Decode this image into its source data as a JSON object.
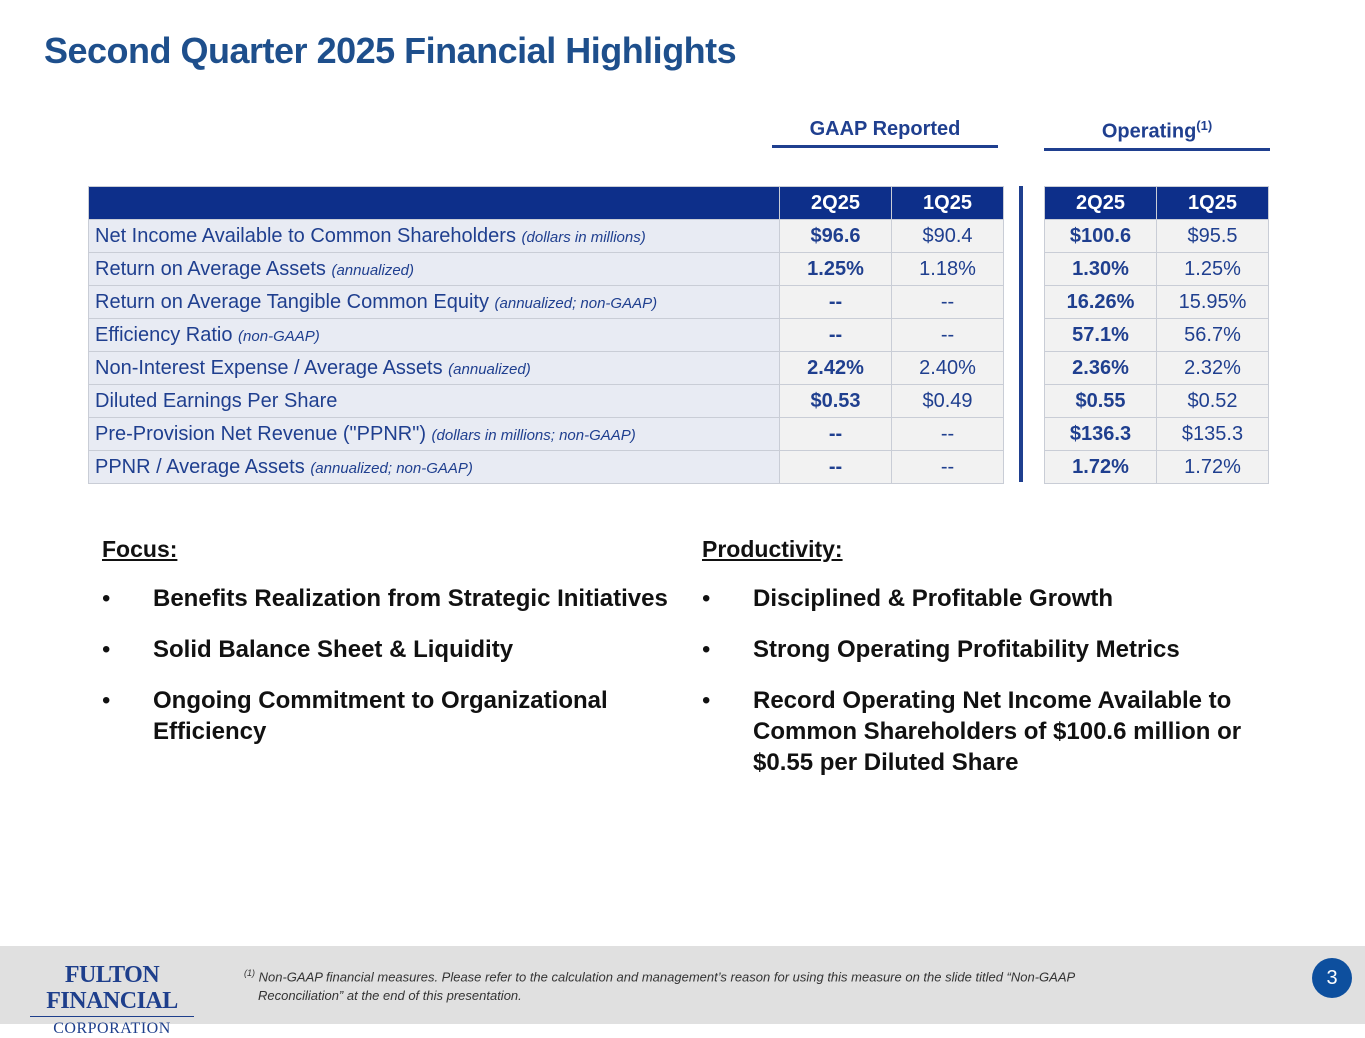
{
  "title": "Second Quarter 2025 Financial Highlights",
  "gaap_header": "GAAP Reported",
  "operating_header": "Operating",
  "operating_sup": "(1)",
  "columns": [
    "2Q25",
    "1Q25"
  ],
  "rows": [
    {
      "label": "Net Income Available to Common Shareholders",
      "note": "(dollars in millions)",
      "gaap_2q25": "$96.6",
      "gaap_1q25": "$90.4",
      "op_2q25": "$100.6",
      "op_1q25": "$95.5"
    },
    {
      "label": "Return on Average Assets",
      "note": "(annualized)",
      "gaap_2q25": "1.25%",
      "gaap_1q25": "1.18%",
      "op_2q25": "1.30%",
      "op_1q25": "1.25%"
    },
    {
      "label": "Return on Average Tangible Common Equity",
      "note": "(annualized; non-GAAP)",
      "gaap_2q25": "--",
      "gaap_1q25": "--",
      "op_2q25": "16.26%",
      "op_1q25": "15.95%"
    },
    {
      "label": "Efficiency Ratio",
      "note": "(non-GAAP)",
      "gaap_2q25": "--",
      "gaap_1q25": "--",
      "op_2q25": "57.1%",
      "op_1q25": "56.7%"
    },
    {
      "label": "Non-Interest Expense / Average Assets",
      "note": "(annualized)",
      "gaap_2q25": "2.42%",
      "gaap_1q25": "2.40%",
      "op_2q25": "2.36%",
      "op_1q25": "2.32%"
    },
    {
      "label": "Diluted Earnings Per Share",
      "note": "",
      "gaap_2q25": "$0.53",
      "gaap_1q25": "$0.49",
      "op_2q25": "$0.55",
      "op_1q25": "$0.52"
    },
    {
      "label": "Pre-Provision Net Revenue (\"PPNR\")",
      "note": "(dollars in millions; non-GAAP)",
      "gaap_2q25": "--",
      "gaap_1q25": "--",
      "op_2q25": "$136.3",
      "op_1q25": "$135.3"
    },
    {
      "label": "PPNR / Average Assets",
      "note": "(annualized; non-GAAP)",
      "gaap_2q25": "--",
      "gaap_1q25": "--",
      "op_2q25": "1.72%",
      "op_1q25": "1.72%"
    }
  ],
  "focus": {
    "heading": "Focus:",
    "items": [
      "Benefits Realization from Strategic Initiatives",
      "Solid Balance Sheet & Liquidity",
      "Ongoing Commitment to Organizational Efficiency"
    ]
  },
  "productivity": {
    "heading": "Productivity:",
    "items": [
      "Disciplined & Profitable Growth",
      "Strong Operating Profitability Metrics",
      "Record Operating Net Income Available to Common Shareholders of $100.6 million or $0.55 per Diluted Share"
    ]
  },
  "bullet": "•",
  "footer": {
    "logo_top": "FULTON FINANCIAL",
    "logo_bottom": "CORPORATION",
    "footnote_marker": "(1)",
    "footnote_line1": "Non-GAAP financial measures. Please refer to the calculation and management’s reason for using this measure on the slide titled “Non-GAAP",
    "footnote_line2": "Reconciliation” at the end of this presentation.",
    "page_number": "3"
  }
}
